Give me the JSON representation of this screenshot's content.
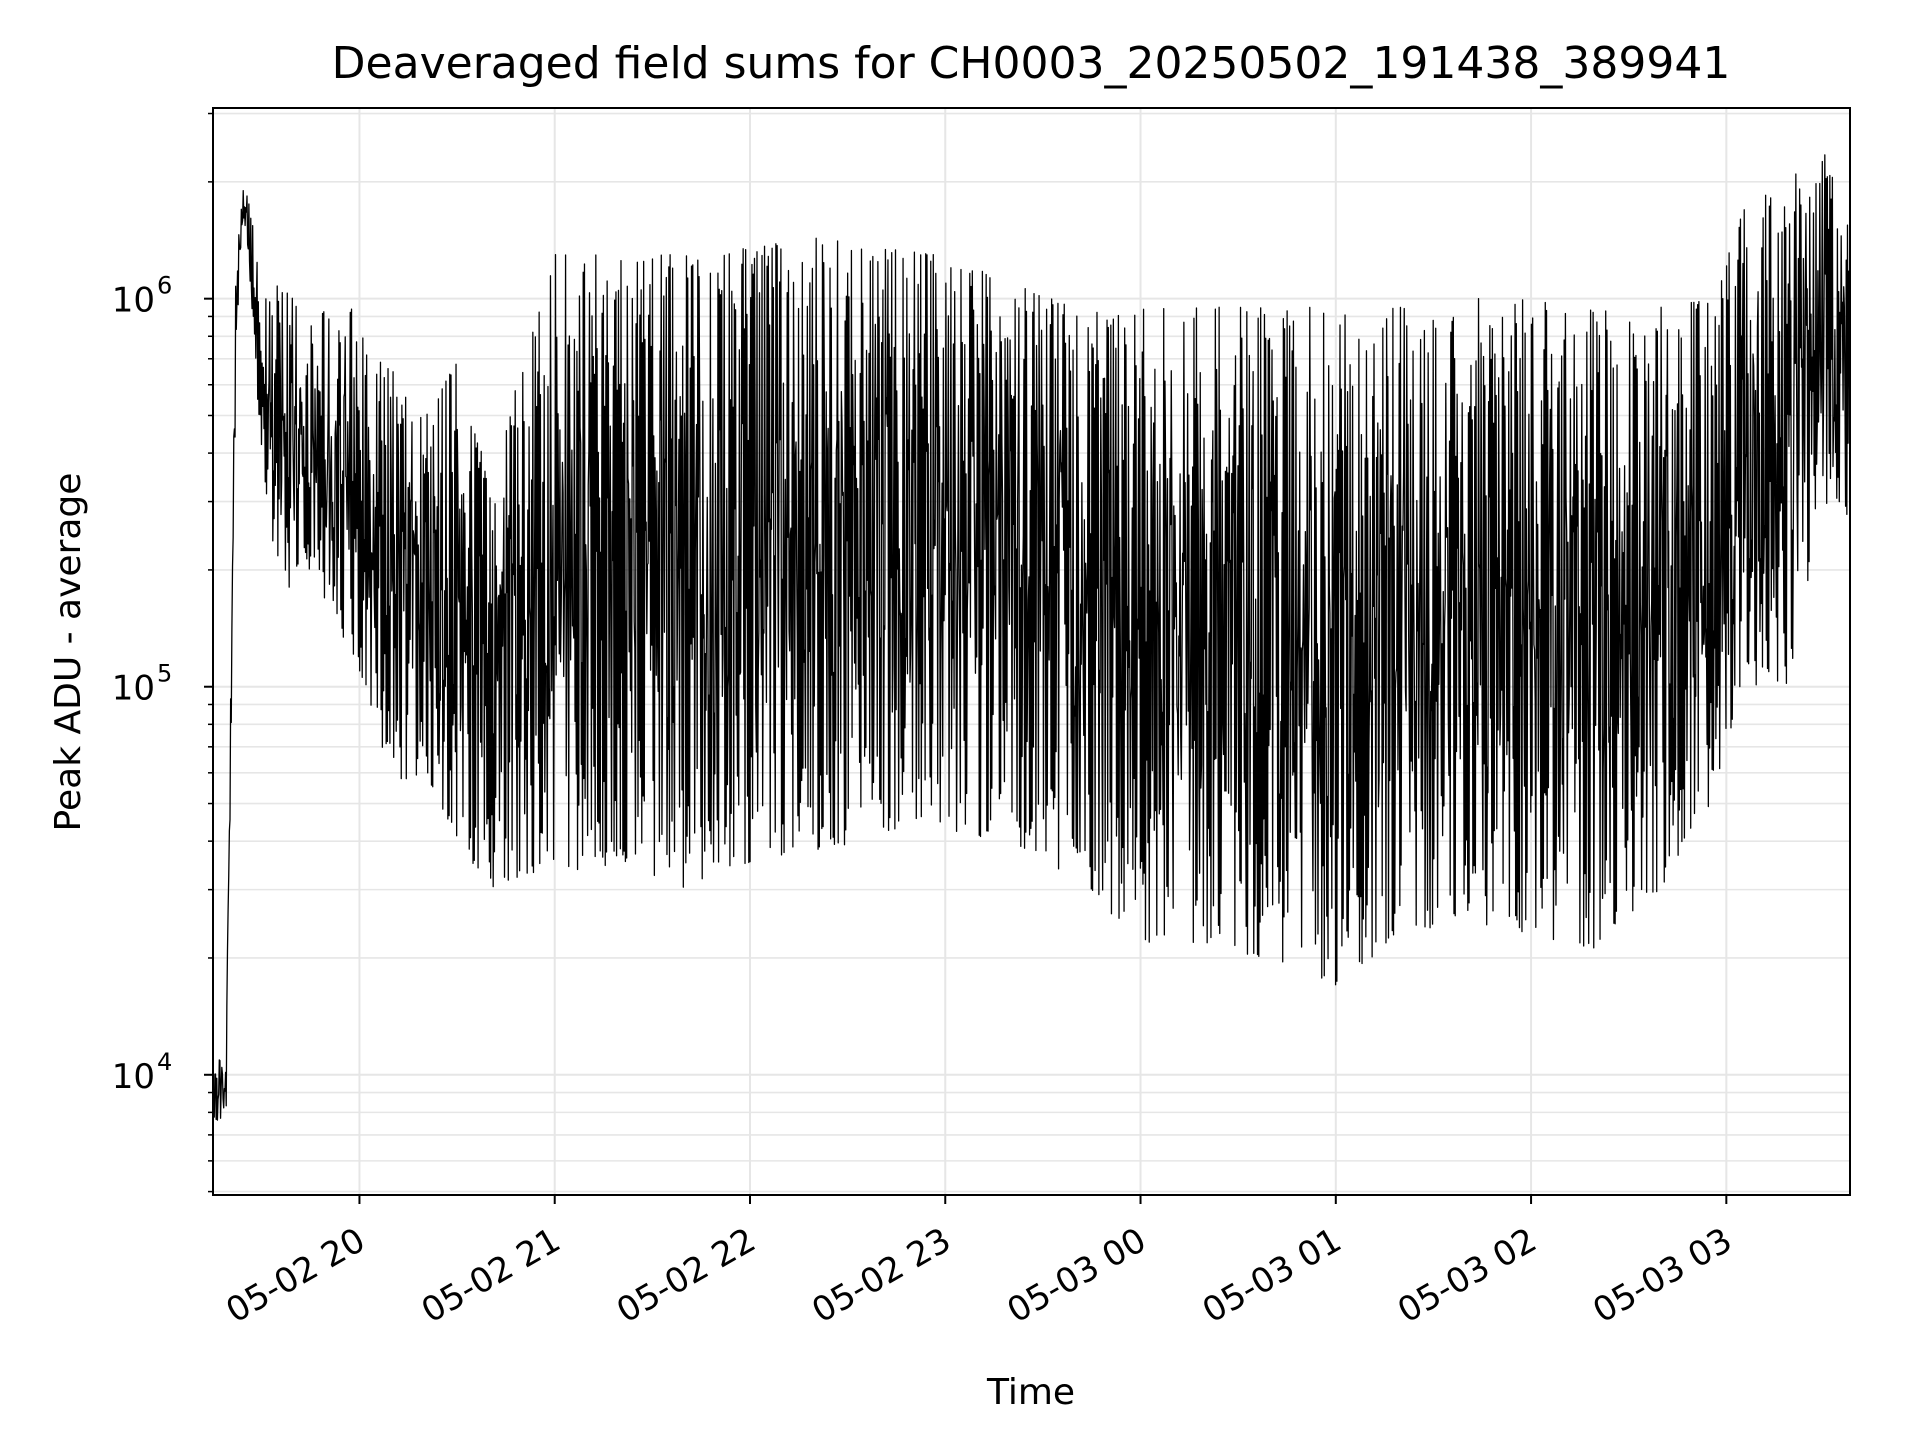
{
  "chart_data": {
    "type": "line",
    "title": "Deaveraged field sums for CH0003_20250502_191438_389941",
    "xlabel": "Time",
    "ylabel": "Peak ADU - average",
    "y_scale": "log",
    "x_range": [
      "2025-05-02 19:15",
      "2025-05-03 03:38"
    ],
    "ylim": [
      4900,
      3100000
    ],
    "grid": true,
    "colors": {
      "line": "#000000",
      "grid": "#e6e6e6",
      "axes": "#000000"
    },
    "x_ticks": [
      {
        "value": "2025-05-02 20:00",
        "label": "05-02 20"
      },
      {
        "value": "2025-05-02 21:00",
        "label": "05-02 21"
      },
      {
        "value": "2025-05-02 22:00",
        "label": "05-02 22"
      },
      {
        "value": "2025-05-02 23:00",
        "label": "05-02 23"
      },
      {
        "value": "2025-05-03 00:00",
        "label": "05-03 00"
      },
      {
        "value": "2025-05-03 01:00",
        "label": "05-03 01"
      },
      {
        "value": "2025-05-03 02:00",
        "label": "05-03 02"
      },
      {
        "value": "2025-05-03 03:00",
        "label": "05-03 03"
      }
    ],
    "y_ticks": [
      {
        "value": 10000,
        "base": "10",
        "exp": "4"
      },
      {
        "value": 100000,
        "base": "10",
        "exp": "5"
      },
      {
        "value": 1000000,
        "base": "10",
        "exp": "6"
      }
    ],
    "series": [
      {
        "envelope": [
          {
            "t": "2025-05-02 19:15",
            "high": 11800,
            "low": 7600
          },
          {
            "t": "2025-05-02 19:19",
            "high": 10500,
            "low": 7500
          },
          {
            "t": "2025-05-02 19:22",
            "high": 1200000,
            "low": 600000
          },
          {
            "t": "2025-05-02 19:24",
            "high": 2000000,
            "low": 1500000
          },
          {
            "t": "2025-05-02 19:27",
            "high": 1700000,
            "low": 900000
          },
          {
            "t": "2025-05-02 19:30",
            "high": 1000000,
            "low": 350000
          },
          {
            "t": "2025-05-02 19:36",
            "high": 1100000,
            "low": 170000
          },
          {
            "t": "2025-05-02 19:45",
            "high": 900000,
            "low": 200000
          },
          {
            "t": "2025-05-02 20:00",
            "high": 1000000,
            "low": 110000
          },
          {
            "t": "2025-05-02 20:10",
            "high": 750000,
            "low": 55000
          },
          {
            "t": "2025-05-02 20:20",
            "high": 500000,
            "low": 60000
          },
          {
            "t": "2025-05-02 20:30",
            "high": 700000,
            "low": 40000
          },
          {
            "t": "2025-05-02 20:40",
            "high": 350000,
            "low": 30000
          },
          {
            "t": "2025-05-02 21:00",
            "high": 1300000,
            "low": 33000
          },
          {
            "t": "2025-05-02 21:20",
            "high": 1300000,
            "low": 35000
          },
          {
            "t": "2025-05-02 21:40",
            "high": 1300000,
            "low": 30000
          },
          {
            "t": "2025-05-02 22:00",
            "high": 1350000,
            "low": 35000
          },
          {
            "t": "2025-05-02 22:20",
            "high": 1450000,
            "low": 38000
          },
          {
            "t": "2025-05-02 22:40",
            "high": 1350000,
            "low": 40000
          },
          {
            "t": "2025-05-02 23:00",
            "high": 1300000,
            "low": 42000
          },
          {
            "t": "2025-05-02 23:20",
            "high": 1100000,
            "low": 40000
          },
          {
            "t": "2025-05-02 23:40",
            "high": 950000,
            "low": 32000
          },
          {
            "t": "2025-05-03 00:00",
            "high": 950000,
            "low": 22000
          },
          {
            "t": "2025-05-03 00:20",
            "high": 950000,
            "low": 21000
          },
          {
            "t": "2025-05-03 00:40",
            "high": 950000,
            "low": 20000
          },
          {
            "t": "2025-05-03 01:00",
            "high": 950000,
            "low": 17000
          },
          {
            "t": "2025-05-03 01:20",
            "high": 950000,
            "low": 23000
          },
          {
            "t": "2025-05-03 01:40",
            "high": 1000000,
            "low": 25000
          },
          {
            "t": "2025-05-03 02:00",
            "high": 1000000,
            "low": 23000
          },
          {
            "t": "2025-05-03 02:20",
            "high": 950000,
            "low": 21000
          },
          {
            "t": "2025-05-03 02:40",
            "high": 950000,
            "low": 30000
          },
          {
            "t": "2025-05-03 02:55",
            "high": 1000000,
            "low": 50000
          },
          {
            "t": "2025-05-03 03:05",
            "high": 1700000,
            "low": 100000
          },
          {
            "t": "2025-05-03 03:20",
            "high": 2100000,
            "low": 100000
          },
          {
            "t": "2025-05-03 03:30",
            "high": 2400000,
            "low": 300000
          },
          {
            "t": "2025-05-03 03:38",
            "high": 1500000,
            "low": 230000
          }
        ]
      }
    ]
  }
}
